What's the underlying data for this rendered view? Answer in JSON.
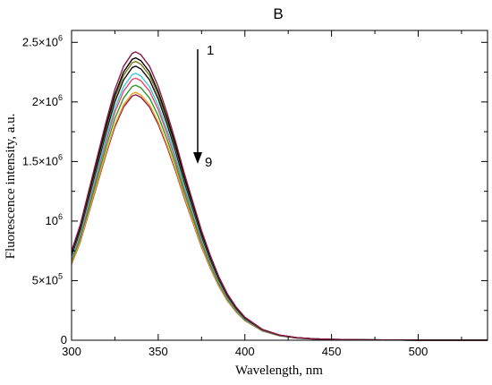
{
  "chart_data": {
    "type": "line",
    "title": "B",
    "xlabel": "Wavelength, nm",
    "ylabel": "Fluorescence intensity, a.u.",
    "xlim": [
      300,
      540
    ],
    "ylim": [
      0,
      2600000
    ],
    "x_ticks": [
      300,
      350,
      400,
      450,
      500
    ],
    "y_ticks": [
      {
        "value": 0,
        "mantissa": "0",
        "exponent": ""
      },
      {
        "value": 500000,
        "mantissa": "5×10",
        "exponent": "5"
      },
      {
        "value": 1000000,
        "mantissa": "10",
        "exponent": "6"
      },
      {
        "value": 1500000,
        "mantissa": "1.5×10",
        "exponent": "6"
      },
      {
        "value": 2000000,
        "mantissa": "2×10",
        "exponent": "6"
      },
      {
        "value": 2500000,
        "mantissa": "2.5×10",
        "exponent": "6"
      }
    ],
    "peak_wavelength": 337,
    "x": [
      300,
      305,
      310,
      315,
      320,
      325,
      330,
      335,
      337,
      340,
      345,
      350,
      355,
      360,
      365,
      370,
      375,
      380,
      385,
      390,
      395,
      400,
      410,
      420,
      430,
      440,
      450,
      460,
      470,
      480,
      490,
      500,
      520,
      540
    ],
    "base_shape": [
      0.31,
      0.4,
      0.52,
      0.64,
      0.76,
      0.87,
      0.95,
      0.995,
      1.0,
      0.99,
      0.95,
      0.88,
      0.79,
      0.69,
      0.58,
      0.48,
      0.38,
      0.295,
      0.22,
      0.16,
      0.115,
      0.08,
      0.038,
      0.018,
      0.009,
      0.005,
      0.003,
      0.002,
      0.0013,
      0.0009,
      0.0006,
      0.0004,
      0.0002,
      0.0001
    ],
    "series": [
      {
        "peak": 2420000,
        "color": "#8B1A4A"
      },
      {
        "peak": 2370000,
        "color": "#000000"
      },
      {
        "peak": 2340000,
        "color": "#7A7A1A"
      },
      {
        "peak": 2300000,
        "color": "#111111"
      },
      {
        "peak": 2240000,
        "color": "#3CC8E0"
      },
      {
        "peak": 2200000,
        "color": "#E8486A"
      },
      {
        "peak": 2140000,
        "color": "#2A9A2A"
      },
      {
        "peak": 2080000,
        "color": "#F0A020"
      },
      {
        "peak": 2060000,
        "color": "#8B1A4A"
      }
    ],
    "annotations": {
      "arrow_top_label": "1",
      "arrow_bottom_label": "9"
    }
  }
}
